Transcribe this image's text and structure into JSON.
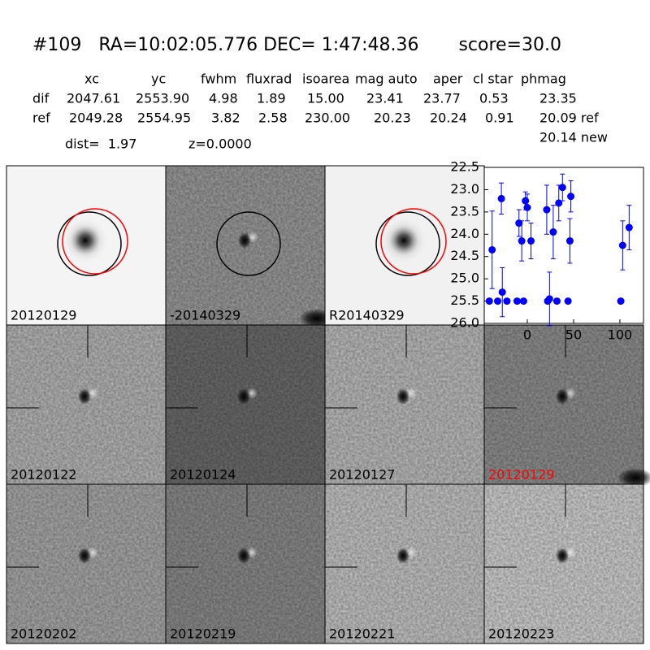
{
  "header": {
    "title": "#109   RA=10:02:05.776 DEC= 1:47:48.36       score=30.0"
  },
  "table": {
    "columns": [
      "xc",
      "yc",
      "fwhm",
      "fluxrad",
      "isoarea",
      "mag auto",
      "aper",
      "cl star",
      "phmag"
    ],
    "rows": [
      {
        "label": "dif",
        "cells": [
          "2047.61",
          "2553.90",
          "4.98",
          "1.89",
          "15.00",
          "23.41",
          "23.77",
          "0.53",
          "23.35"
        ]
      },
      {
        "label": "ref",
        "cells": [
          "2049.28",
          "2554.95",
          "3.82",
          "2.58",
          "230.00",
          "20.23",
          "20.24",
          "0.91",
          "20.09 ref"
        ]
      }
    ],
    "note": "20.14 new"
  },
  "info": {
    "dist": "dist=  1.97",
    "z": "z=0.0000"
  },
  "panels": [
    {
      "label": "20120129"
    },
    {
      "label": "-20140329"
    },
    {
      "label": "R20140329"
    },
    {
      "label": "20120122"
    },
    {
      "label": "20120124"
    },
    {
      "label": "20120127"
    },
    {
      "label": "20120129",
      "label_color": "#ff0000"
    },
    {
      "label": "20120202"
    },
    {
      "label": "20120219"
    },
    {
      "label": "20120221"
    },
    {
      "label": "20120223"
    }
  ],
  "chart_data": {
    "type": "scatter",
    "color": "#0000ff",
    "x": [
      -41,
      -38,
      -32,
      -28,
      -27,
      -22,
      -11,
      -9,
      -6,
      -4,
      -2,
      0,
      4,
      21,
      22,
      24,
      28,
      32,
      34,
      38,
      44,
      46,
      47,
      101,
      103,
      110
    ],
    "values": [
      25.5,
      24.35,
      25.5,
      23.2,
      25.3,
      25.5,
      25.5,
      23.75,
      24.15,
      25.5,
      23.25,
      23.4,
      24.15,
      23.45,
      25.5,
      25.45,
      23.95,
      25.5,
      23.3,
      22.95,
      25.5,
      24.15,
      23.15,
      25.5,
      24.25,
      23.85
    ],
    "errors": [
      null,
      0.87,
      null,
      0.35,
      0.55,
      null,
      null,
      0.3,
      0.45,
      null,
      0.2,
      0.3,
      0.4,
      0.55,
      null,
      0.6,
      0.6,
      null,
      0.4,
      0.3,
      null,
      0.5,
      0.35,
      null,
      0.55,
      0.5
    ],
    "xlim": [
      -46.5,
      125.5
    ],
    "ylim": [
      22.5,
      26.0
    ],
    "y_inverted": true,
    "xticks": [
      0,
      50,
      100
    ],
    "yticks": [
      22.5,
      {
        "value": 23,
        "label": "23.0"
      },
      23.5,
      {
        "value": 24,
        "label": "24.0"
      },
      24.5,
      {
        "value": 25,
        "label": "25.0"
      },
      25.5,
      {
        "value": 26,
        "label": "26.0"
      }
    ]
  }
}
